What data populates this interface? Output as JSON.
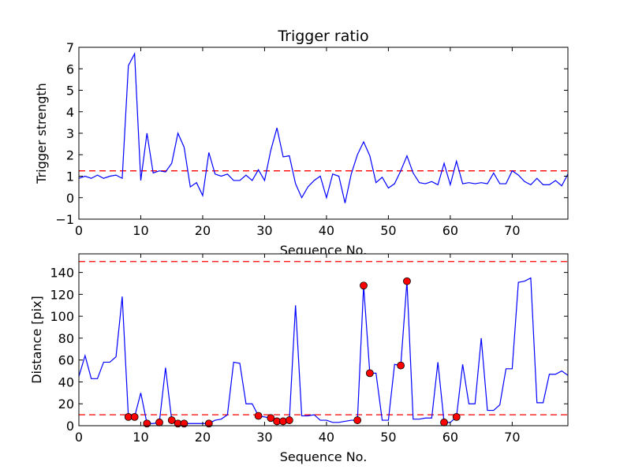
{
  "chart_data": [
    {
      "type": "line",
      "title": "Trigger ratio",
      "xlabel": "Sequence No.",
      "ylabel": "Trigger strength",
      "xlim": [
        0,
        79
      ],
      "ylim": [
        -1,
        7
      ],
      "xticks": [
        0,
        10,
        20,
        30,
        40,
        50,
        60,
        70
      ],
      "yticks": [
        -1,
        0,
        1,
        2,
        3,
        4,
        5,
        6,
        7
      ],
      "grid": false,
      "line_color": "#0000ff",
      "threshold_color": "#ff0000",
      "threshold": 1.25,
      "series": [
        {
          "x": [
            0,
            1,
            2,
            3,
            4,
            5,
            6,
            7,
            8,
            9,
            10,
            11,
            12,
            13,
            14,
            15,
            16,
            17,
            18,
            19,
            20,
            21,
            22,
            23,
            24,
            25,
            26,
            27,
            28,
            29,
            30,
            31,
            32,
            33,
            34,
            35,
            36,
            37,
            38,
            39,
            40,
            41,
            42,
            43,
            44,
            45,
            46,
            47,
            48,
            49,
            50,
            51,
            52,
            53,
            54,
            55,
            56,
            57,
            58,
            59,
            60,
            61,
            62,
            63,
            64,
            65,
            66,
            67,
            68,
            69,
            70,
            71,
            72,
            73,
            74,
            75,
            76,
            77,
            78,
            79
          ],
          "y": [
            0.9,
            1.0,
            0.9,
            1.05,
            0.9,
            1.0,
            1.05,
            0.9,
            6.15,
            6.7,
            0.8,
            3.0,
            1.15,
            1.25,
            1.2,
            1.6,
            3.0,
            2.35,
            0.5,
            0.7,
            0.1,
            2.1,
            1.1,
            1.0,
            1.1,
            0.8,
            0.8,
            1.05,
            0.8,
            1.3,
            0.8,
            2.2,
            3.25,
            1.9,
            1.95,
            0.65,
            0.0,
            0.5,
            0.8,
            1.0,
            0.0,
            1.1,
            1.0,
            -0.25,
            1.1,
            2.0,
            2.6,
            1.95,
            0.7,
            0.95,
            0.45,
            0.65,
            1.25,
            1.95,
            1.15,
            0.7,
            0.65,
            0.75,
            0.6,
            1.6,
            0.6,
            1.7,
            0.65,
            0.7,
            0.65,
            0.7,
            0.65,
            1.15,
            0.65,
            0.65,
            1.25,
            1.05,
            0.75,
            0.6,
            0.9,
            0.6,
            0.6,
            0.8,
            0.55,
            1.1
          ]
        }
      ]
    },
    {
      "type": "line",
      "title": "",
      "xlabel": "Sequence No.",
      "ylabel": "Distance [pix]",
      "xlim": [
        0,
        79
      ],
      "ylim": [
        0,
        157
      ],
      "xticks": [
        0,
        10,
        20,
        30,
        40,
        50,
        60,
        70
      ],
      "yticks": [
        0,
        20,
        40,
        60,
        80,
        100,
        120,
        140
      ],
      "grid": false,
      "line_color": "#0000ff",
      "threshold_color": "#ff0000",
      "marker_color": "#ff0000",
      "thresholds": [
        10,
        150
      ],
      "series": [
        {
          "x": [
            0,
            1,
            2,
            3,
            4,
            5,
            6,
            7,
            8,
            9,
            10,
            11,
            12,
            13,
            14,
            15,
            16,
            17,
            18,
            19,
            20,
            21,
            22,
            23,
            24,
            25,
            26,
            27,
            28,
            29,
            30,
            31,
            32,
            33,
            34,
            35,
            36,
            37,
            38,
            39,
            40,
            41,
            42,
            43,
            44,
            45,
            46,
            47,
            48,
            49,
            50,
            51,
            52,
            53,
            54,
            55,
            56,
            57,
            58,
            59,
            60,
            61,
            62,
            63,
            64,
            65,
            66,
            67,
            68,
            69,
            70,
            71,
            72,
            73,
            74,
            75,
            76,
            77,
            78,
            79
          ],
          "y": [
            45,
            64,
            43,
            43,
            58,
            58,
            63,
            118,
            8,
            8,
            30,
            2,
            2,
            3,
            53,
            5,
            2,
            2,
            2,
            2,
            2,
            2,
            5,
            6,
            10,
            58,
            57,
            20,
            20,
            9,
            8,
            7,
            4,
            4,
            5,
            110,
            9,
            9,
            10,
            5,
            5,
            3,
            3,
            4,
            5,
            5,
            128,
            48,
            48,
            5,
            5,
            56,
            55,
            132,
            6,
            6,
            7,
            7,
            58,
            3,
            3,
            8,
            56,
            20,
            20,
            80,
            14,
            14,
            19,
            52,
            52,
            131,
            132,
            135,
            21,
            21,
            47,
            47,
            50,
            46
          ]
        }
      ],
      "highlighted_points": {
        "x": [
          8,
          9,
          11,
          13,
          15,
          16,
          17,
          21,
          29,
          31,
          32,
          33,
          34,
          45,
          46,
          47,
          52,
          53,
          59,
          61
        ],
        "y": [
          8,
          8,
          2,
          3,
          5,
          2,
          2,
          2,
          9,
          7,
          4,
          4,
          5,
          5,
          128,
          48,
          55,
          132,
          3,
          8
        ]
      }
    }
  ]
}
